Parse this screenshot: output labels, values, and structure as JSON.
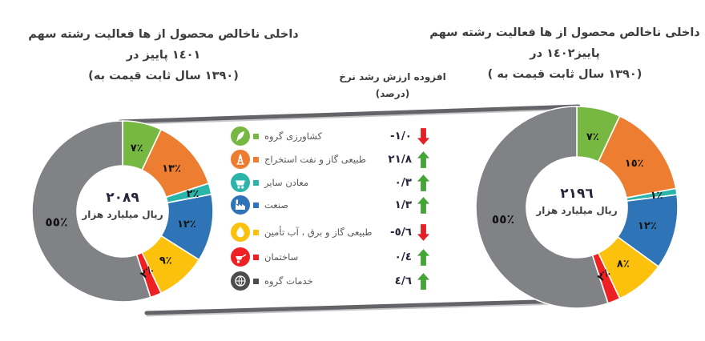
{
  "left_title": {
    "line1": "سهم رشته فعالیت ها از محصول ناخالص داخلی",
    "line2": "در پاییز ١٤٠١",
    "line3": "(به قیمت ثابت سال ١٣٩٠)"
  },
  "right_title": {
    "line1": "سهم رشته فعالیت ها از محصول ناخالص داخلی",
    "line2": "در پاییز١٤٠٢",
    "line3": "( به قیمت ثابت سال ١٣٩٠)"
  },
  "growth_header": {
    "line1": "نرخ رشد ارزش افزوده",
    "line2": "(درصد)"
  },
  "sectors": {
    "names": [
      "گروه کشاورزی",
      "استخراج نفت و گاز طبیعی",
      "سایر معادن",
      "صنعت",
      "تأمین آب ، برق و گاز طبیعی",
      "ساختمان",
      "گروه خدمات"
    ],
    "icons": [
      "agriculture-icon",
      "oil-gas-extraction-icon",
      "mining-icon",
      "industry-icon",
      "utilities-icon",
      "construction-icon",
      "services-icon"
    ],
    "colors": [
      "#77b843",
      "#ed7d31",
      "#2bb4a9",
      "#2e74b6",
      "#fcc10c",
      "#ee2024",
      "#4d4d4f"
    ]
  },
  "colors": {
    "up_arrow": "#43a536",
    "down_arrow": "#e31e24",
    "connector": "#636468",
    "slice_label": "#141414"
  },
  "chart_data": [
    {
      "type": "pie",
      "subtype": "donut",
      "position": "left",
      "title": "سهم رشته فعالیت ها از محصول ناخالص داخلی در پاییز ١٤٠١ (به قیمت ثابت سال ١٣٩٠)",
      "categories": [
        "گروه کشاورزی",
        "استخراج نفت و گاز طبیعی",
        "سایر معادن",
        "صنعت",
        "تأمین آب ، برق و گاز طبیعی",
        "ساختمان",
        "گروه خدمات"
      ],
      "values": [
        7,
        13,
        2,
        12,
        9,
        2,
        55
      ],
      "slice_labels": [
        "٧٪",
        "١٣٪",
        "٢٪",
        "١٢٪",
        "٩٪",
        "٢٪",
        "٥٥٪"
      ],
      "colors": [
        "#77b843",
        "#ed7d31",
        "#2bb4a9",
        "#2e74b6",
        "#fcc10c",
        "#ee2024",
        "#808285"
      ],
      "center_value": "٢٠٨٩",
      "center_unit": "هزار میلیارد ریال",
      "legend_position": "none",
      "grid": false
    },
    {
      "type": "pie",
      "subtype": "donut",
      "position": "right",
      "title": "سهم رشته فعالیت ها از محصول ناخالص داخلی در پاییز١٤٠٢ ( به قیمت ثابت سال ١٣٩٠)",
      "categories": [
        "گروه کشاورزی",
        "استخراج نفت و گاز طبیعی",
        "سایر معادن",
        "صنعت",
        "تأمین آب ، برق و گاز طبیعی",
        "ساختمان",
        "گروه خدمات"
      ],
      "values": [
        7,
        15,
        1,
        12,
        8,
        2,
        55
      ],
      "slice_labels": [
        "٧٪",
        "١٥٪",
        "١٪",
        "١٢٪",
        "٨٪",
        "٢٪",
        "٥٥٪"
      ],
      "colors": [
        "#77b843",
        "#ed7d31",
        "#2bb4a9",
        "#2e74b6",
        "#fcc10c",
        "#ee2024",
        "#808285"
      ],
      "center_value": "٢١٩٦",
      "center_unit": "هزار میلیارد ریال",
      "legend_position": "none",
      "grid": false
    },
    {
      "type": "table",
      "title": "نرخ رشد ارزش افزوده (درصد)",
      "rows": [
        {
          "label": "گروه کشاورزی",
          "value_display": "-١/٠",
          "value_numeric": -1.0,
          "direction": "down"
        },
        {
          "label": "استخراج نفت و گاز طبیعی",
          "value_display": "٢١/٨",
          "value_numeric": 21.8,
          "direction": "up"
        },
        {
          "label": "سایر معادن",
          "value_display": "٠/٣",
          "value_numeric": 0.3,
          "direction": "up"
        },
        {
          "label": "صنعت",
          "value_display": "١/٣",
          "value_numeric": 1.3,
          "direction": "up"
        },
        {
          "label": "تأمین آب ، برق و گاز طبیعی",
          "value_display": "-٥/٦",
          "value_numeric": -5.6,
          "direction": "down"
        },
        {
          "label": "ساختمان",
          "value_display": "٠/٤",
          "value_numeric": 0.4,
          "direction": "up"
        },
        {
          "label": "گروه خدمات",
          "value_display": "٤/٦",
          "value_numeric": 4.6,
          "direction": "up"
        }
      ]
    }
  ]
}
